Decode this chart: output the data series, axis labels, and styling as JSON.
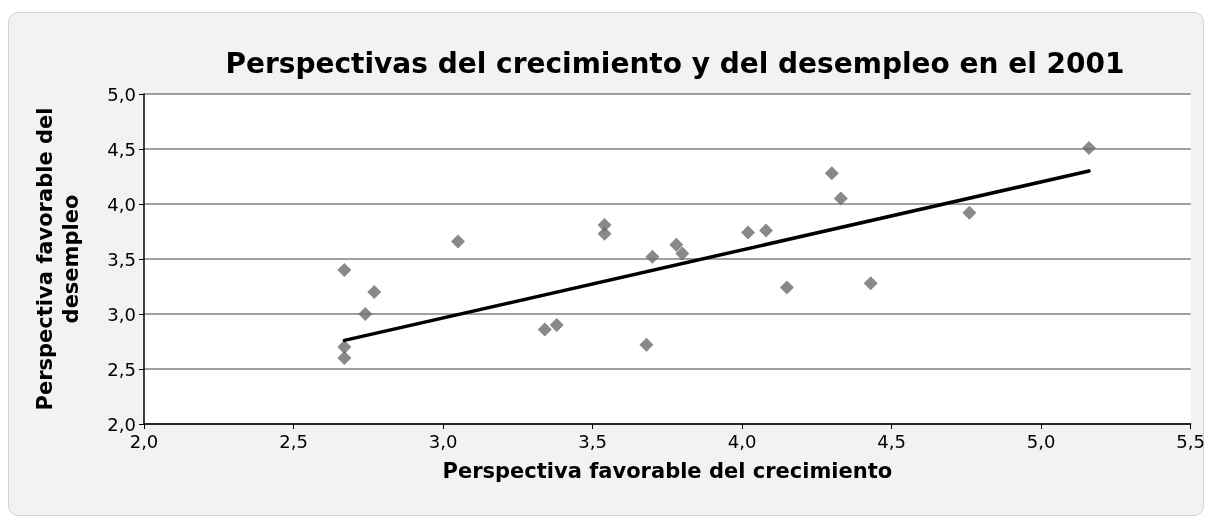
{
  "chart_data": {
    "type": "scatter",
    "title": "Perspectivas del crecimiento y del desempleo en el 2001",
    "xlabel": "Perspectiva favorable del crecimiento",
    "ylabel": "Perspectiva favorable del desempleo",
    "xlim": [
      2,
      5.5
    ],
    "xticks": [
      {
        "value": 2,
        "label": "2,0"
      },
      {
        "value": 2.5,
        "label": "2,5"
      },
      {
        "value": 3,
        "label": "3,0"
      },
      {
        "value": 3.5,
        "label": "3,5"
      },
      {
        "value": 4,
        "label": "4,0"
      },
      {
        "value": 4.5,
        "label": "4,5"
      },
      {
        "value": 5,
        "label": "5,0"
      },
      {
        "value": 5.5,
        "label": "5,5"
      }
    ],
    "ylim": [
      2,
      5
    ],
    "yticks": [
      {
        "value": 2,
        "label": "2,0"
      },
      {
        "value": 2.5,
        "label": "2,5"
      },
      {
        "value": 3,
        "label": "3,0"
      },
      {
        "value": 3.5,
        "label": "3,5"
      },
      {
        "value": 4,
        "label": "4,0"
      },
      {
        "value": 4.5,
        "label": "4,5"
      },
      {
        "value": 5,
        "label": "5,0"
      }
    ],
    "grid": "y",
    "series": [
      {
        "marker": "diamond",
        "color": "#6b6b6b",
        "x": [
          2.67,
          2.67,
          2.67,
          2.77,
          2.74,
          3.05,
          3.34,
          3.38,
          3.54,
          3.54,
          3.68,
          3.7,
          3.78,
          3.8,
          4.02,
          4.08,
          4.15,
          4.3,
          4.33,
          4.43,
          4.76,
          5.16
        ],
        "values": [
          3.4,
          2.7,
          2.6,
          3.2,
          3.0,
          3.66,
          2.86,
          2.9,
          3.81,
          3.73,
          2.72,
          3.52,
          3.63,
          3.55,
          3.74,
          3.76,
          3.24,
          4.28,
          4.05,
          3.28,
          3.92,
          4.51
        ]
      },
      {
        "type": "line",
        "marker": "none",
        "color": "#000000",
        "x": [
          2.67,
          5.16
        ],
        "values": [
          2.76,
          4.3
        ]
      }
    ]
  }
}
